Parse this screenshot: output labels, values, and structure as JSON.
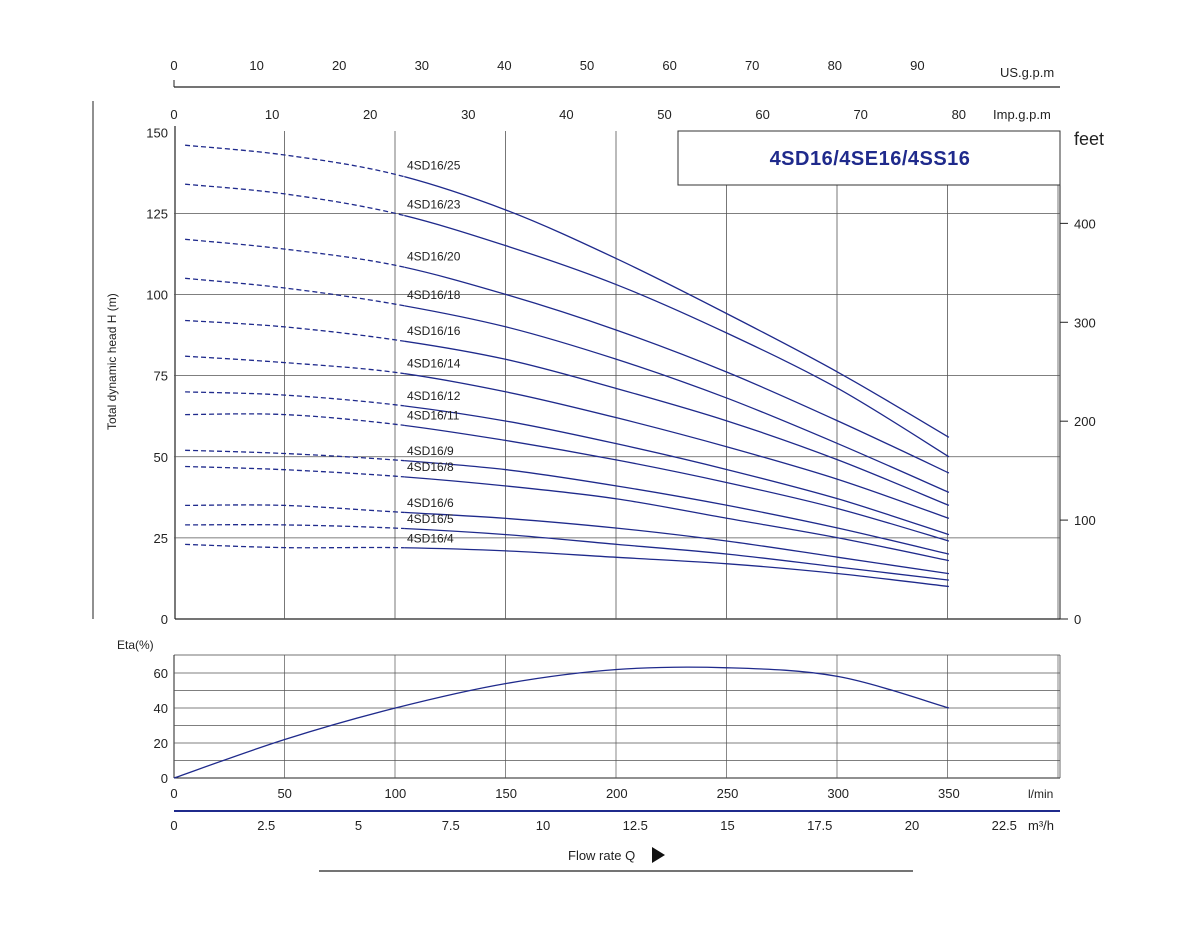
{
  "chart_data": [
    {
      "type": "line",
      "title": "4SD16/4SE16/4SS16",
      "ylabel": "Total dynamic head H (m)",
      "y_right_label": "feet",
      "xlabel": "Flow rate Q",
      "x_units": [
        "l/min",
        "m³/h",
        "Imp.g.p.m",
        "US.g.p.m"
      ],
      "ylim": [
        0,
        150
      ],
      "xlim_lmin": [
        0,
        400
      ],
      "grid": true,
      "ticks": {
        "y_left": [
          "0",
          "25",
          "50",
          "75",
          "100",
          "125",
          "150"
        ],
        "y_right": [
          "0",
          "100",
          "200",
          "300",
          "400"
        ],
        "x_lmin": [
          "0",
          "50",
          "100",
          "150",
          "200",
          "250",
          "300",
          "350"
        ],
        "x_m3h": [
          "0",
          "2.5",
          "5",
          "7.5",
          "10",
          "12.5",
          "15",
          "17.5",
          "20",
          "22.5"
        ],
        "x_imp": [
          "0",
          "10",
          "20",
          "30",
          "40",
          "50",
          "60",
          "70",
          "80"
        ],
        "x_us": [
          "0",
          "10",
          "20",
          "30",
          "40",
          "50",
          "60",
          "70",
          "80",
          "90"
        ]
      },
      "series": [
        {
          "name": "4SD16/25",
          "x": [
            5,
            50,
            100,
            150,
            200,
            250,
            300,
            350
          ],
          "y": [
            146,
            143,
            137,
            126,
            111,
            94,
            76,
            56
          ]
        },
        {
          "name": "4SD16/23",
          "x": [
            5,
            50,
            100,
            150,
            200,
            250,
            300,
            350
          ],
          "y": [
            134,
            131,
            125,
            115,
            103,
            88,
            71,
            50
          ]
        },
        {
          "name": "4SD16/20",
          "x": [
            5,
            50,
            100,
            150,
            200,
            250,
            300,
            350
          ],
          "y": [
            117,
            114,
            109,
            100,
            89,
            76,
            61,
            45
          ]
        },
        {
          "name": "4SD16/18",
          "x": [
            5,
            50,
            100,
            150,
            200,
            250,
            300,
            350
          ],
          "y": [
            105,
            102,
            97,
            90,
            80,
            68,
            54,
            39
          ]
        },
        {
          "name": "4SD16/16",
          "x": [
            5,
            50,
            100,
            150,
            200,
            250,
            300,
            350
          ],
          "y": [
            92,
            90,
            86,
            80,
            71,
            61,
            49,
            35
          ]
        },
        {
          "name": "4SD16/14",
          "x": [
            5,
            50,
            100,
            150,
            200,
            250,
            300,
            350
          ],
          "y": [
            81,
            79,
            76,
            70,
            62,
            53,
            43,
            31
          ]
        },
        {
          "name": "4SD16/12",
          "x": [
            5,
            50,
            100,
            150,
            200,
            250,
            300,
            350
          ],
          "y": [
            70,
            69,
            66,
            61,
            54,
            46,
            37,
            26
          ]
        },
        {
          "name": "4SD16/11",
          "x": [
            5,
            50,
            100,
            150,
            200,
            250,
            300,
            350
          ],
          "y": [
            63,
            63,
            60,
            55,
            49,
            42,
            34,
            24
          ]
        },
        {
          "name": "4SD16/9",
          "x": [
            5,
            50,
            100,
            150,
            200,
            250,
            300,
            350
          ],
          "y": [
            52,
            51,
            49,
            46,
            41,
            35,
            28,
            20
          ]
        },
        {
          "name": "4SD16/8",
          "x": [
            5,
            50,
            100,
            150,
            200,
            250,
            300,
            350
          ],
          "y": [
            47,
            46,
            44,
            41,
            37,
            31,
            25,
            18
          ]
        },
        {
          "name": "4SD16/6",
          "x": [
            5,
            50,
            100,
            150,
            200,
            250,
            300,
            350
          ],
          "y": [
            35,
            35,
            33,
            31,
            28,
            24,
            19,
            14
          ]
        },
        {
          "name": "4SD16/5",
          "x": [
            5,
            50,
            100,
            150,
            200,
            250,
            300,
            350
          ],
          "y": [
            29,
            29,
            28,
            26,
            23,
            20,
            16,
            12
          ]
        },
        {
          "name": "4SD16/4",
          "x": [
            5,
            50,
            100,
            150,
            200,
            250,
            300,
            350
          ],
          "y": [
            23,
            22,
            22,
            21,
            19,
            17,
            14,
            10
          ]
        }
      ]
    },
    {
      "type": "line",
      "title": "",
      "ylabel": "Eta(%)",
      "ylim": [
        0,
        70
      ],
      "ticks": {
        "y": [
          "0",
          "20",
          "40",
          "60"
        ]
      },
      "grid": true,
      "series": [
        {
          "name": "",
          "x": [
            0,
            50,
            100,
            150,
            200,
            250,
            300,
            350
          ],
          "y": [
            0,
            22,
            40,
            54,
            62,
            63,
            58,
            40
          ]
        }
      ]
    }
  ],
  "flow_label": "Flow rate Q",
  "colors": {
    "curve": "#1f2a8c",
    "grid": "#555555",
    "axis": "#1f2a8c"
  }
}
